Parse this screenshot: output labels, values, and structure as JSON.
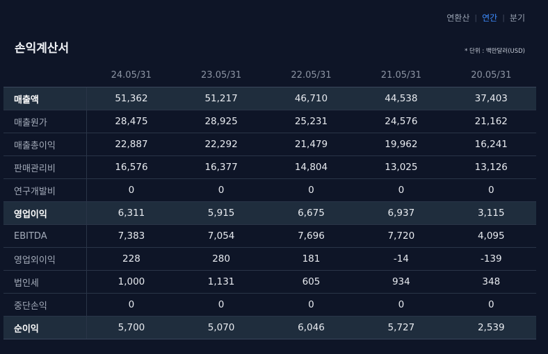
{
  "tabs": [
    "연환산",
    "연간",
    "분기"
  ],
  "active_tab": "연간",
  "title": "손익계산서",
  "unit_note": "* 단위 : 백만달러(USD)",
  "columns": [
    "24.05/31",
    "23.05/31",
    "22.05/31",
    "21.05/31",
    "20.05/31"
  ],
  "rows": [
    {
      "label": "매출액",
      "values": [
        "51,362",
        "51,217",
        "46,710",
        "44,538",
        "37,403"
      ],
      "highlight": true
    },
    {
      "label": "매출원가",
      "values": [
        "28,475",
        "28,925",
        "25,231",
        "24,576",
        "21,162"
      ],
      "highlight": false
    },
    {
      "label": "매출총이익",
      "values": [
        "22,887",
        "22,292",
        "21,479",
        "19,962",
        "16,241"
      ],
      "highlight": false
    },
    {
      "label": "판매관리비",
      "values": [
        "16,576",
        "16,377",
        "14,804",
        "13,025",
        "13,126"
      ],
      "highlight": false
    },
    {
      "label": "연구개발비",
      "values": [
        "0",
        "0",
        "0",
        "0",
        "0"
      ],
      "highlight": false
    },
    {
      "label": "영업이익",
      "values": [
        "6,311",
        "5,915",
        "6,675",
        "6,937",
        "3,115"
      ],
      "highlight": true
    },
    {
      "label": "EBITDA",
      "values": [
        "7,383",
        "7,054",
        "7,696",
        "7,720",
        "4,095"
      ],
      "highlight": false
    },
    {
      "label": "영업외이익",
      "values": [
        "228",
        "280",
        "181",
        "-14",
        "-139"
      ],
      "highlight": false
    },
    {
      "label": "법인세",
      "values": [
        "1,000",
        "1,131",
        "605",
        "934",
        "348"
      ],
      "highlight": false
    },
    {
      "label": "중단손익",
      "values": [
        "0",
        "0",
        "0",
        "0",
        "0"
      ],
      "highlight": false
    },
    {
      "label": "순이익",
      "values": [
        "5,700",
        "5,070",
        "6,046",
        "5,727",
        "2,539"
      ],
      "highlight": true
    }
  ]
}
